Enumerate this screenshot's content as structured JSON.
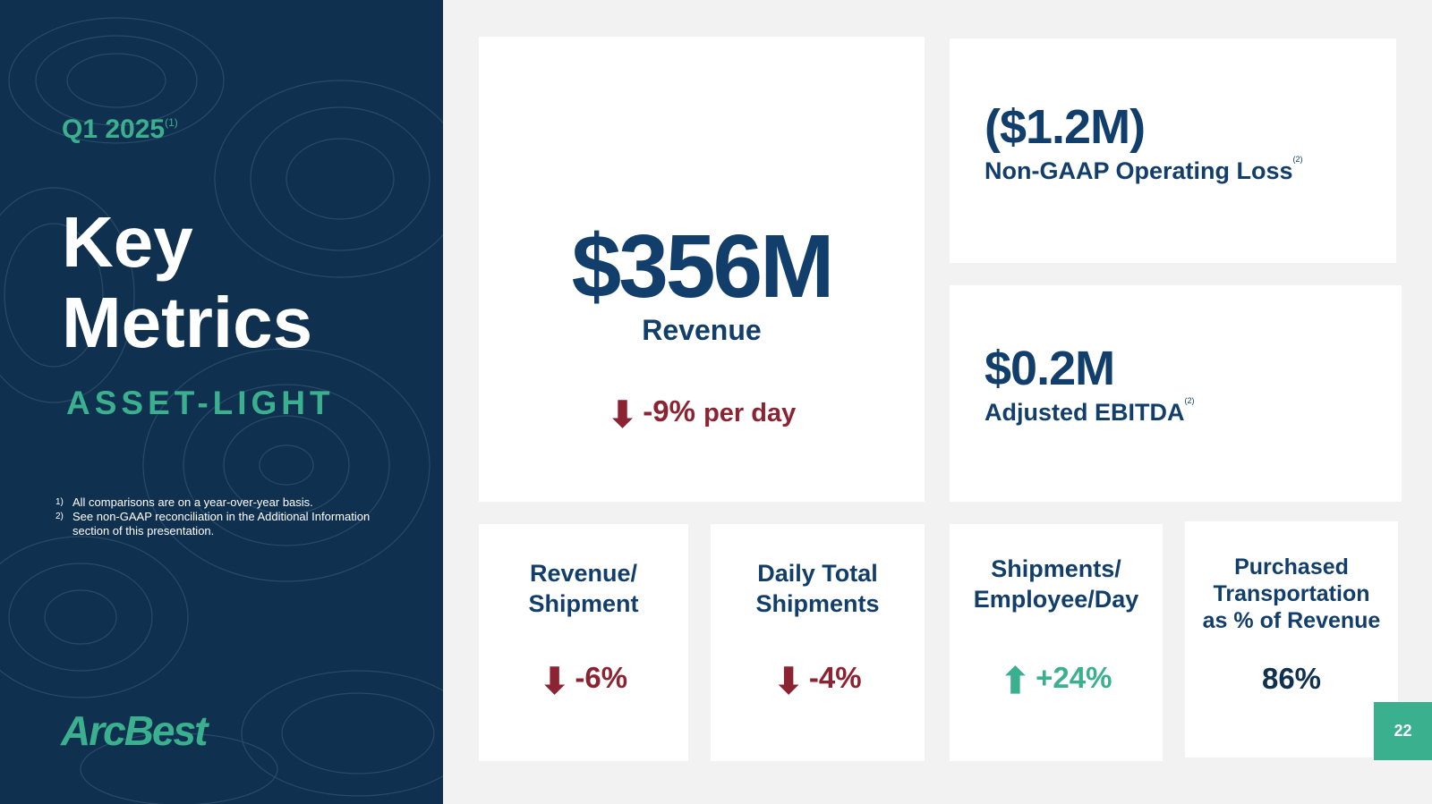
{
  "sidebar": {
    "period": "Q1 2025",
    "period_note": "(1)",
    "title_line1": "Key",
    "title_line2": "Metrics",
    "subtitle": "ASSET-LIGHT",
    "footnotes": [
      {
        "num": "1)",
        "text": "All comparisons are on a year-over-year basis."
      },
      {
        "num": "2)",
        "text": "See non-GAAP reconciliation in the Additional Information section of this presentation."
      }
    ],
    "logo_text": "ArcBest"
  },
  "revenue": {
    "value": "$356M",
    "label": "Revenue",
    "change": "-9%",
    "change_suffix": "per day",
    "direction": "down"
  },
  "operating_loss": {
    "value": "($1.2M)",
    "label": "Non-GAAP Operating Loss",
    "note": "(2)"
  },
  "ebitda": {
    "value": "$0.2M",
    "label": "Adjusted EBITDA",
    "note": "(2)"
  },
  "metrics": [
    {
      "label_line1": "Revenue/",
      "label_line2": "Shipment",
      "change": "-6%",
      "direction": "down"
    },
    {
      "label_line1": "Daily Total",
      "label_line2": "Shipments",
      "change": "-4%",
      "direction": "down"
    },
    {
      "label_line1": "Shipments/",
      "label_line2": "Employee/Day",
      "change": "+24%",
      "direction": "up"
    },
    {
      "label_line1": "Purchased",
      "label_line2": "Transportation",
      "label_line3": "as % of Revenue",
      "value": "86%"
    }
  ],
  "page_number": "22",
  "colors": {
    "navy": "#10304f",
    "dark_blue_text": "#123e6b",
    "teal": "#3bb08f",
    "red": "#8b2332",
    "background": "#f2f2f2"
  },
  "icons": {
    "down": "arrow-down-icon",
    "up": "arrow-up-icon"
  }
}
